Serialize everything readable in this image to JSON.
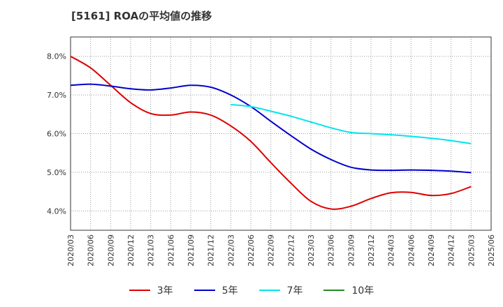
{
  "chart_data": {
    "type": "line",
    "title": "[5161]  ROAの平均値の推移",
    "xlabel": "",
    "ylabel": "",
    "ylim": [
      3.5,
      8.5
    ],
    "yticks": [
      {
        "v": 4.0,
        "label": "4.0%"
      },
      {
        "v": 5.0,
        "label": "5.0%"
      },
      {
        "v": 6.0,
        "label": "6.0%"
      },
      {
        "v": 7.0,
        "label": "7.0%"
      },
      {
        "v": 8.0,
        "label": "8.0%"
      }
    ],
    "categories": [
      "2020/03",
      "2020/06",
      "2020/09",
      "2020/12",
      "2021/03",
      "2021/06",
      "2021/09",
      "2021/12",
      "2022/03",
      "2022/06",
      "2022/09",
      "2022/12",
      "2023/03",
      "2023/06",
      "2023/09",
      "2023/12",
      "2024/03",
      "2024/06",
      "2024/09",
      "2024/12",
      "2025/03",
      "2025/06"
    ],
    "grid": true,
    "legend_position": "bottom",
    "series": [
      {
        "name": "3年",
        "color": "#dd0000",
        "values": [
          8.0,
          7.7,
          7.25,
          6.8,
          6.52,
          6.48,
          6.56,
          6.48,
          6.2,
          5.8,
          5.25,
          4.72,
          4.25,
          4.05,
          4.12,
          4.32,
          4.47,
          4.48,
          4.4,
          4.45,
          4.63,
          null
        ]
      },
      {
        "name": "5年",
        "color": "#0000cc",
        "values": [
          7.25,
          7.28,
          7.23,
          7.16,
          7.13,
          7.18,
          7.25,
          7.2,
          7.0,
          6.7,
          6.32,
          5.95,
          5.6,
          5.33,
          5.13,
          5.06,
          5.05,
          5.06,
          5.05,
          5.03,
          4.99,
          null
        ]
      },
      {
        "name": "7年",
        "color": "#00e5ee",
        "values": [
          null,
          null,
          null,
          null,
          null,
          null,
          null,
          null,
          6.75,
          6.7,
          6.58,
          6.45,
          6.3,
          6.15,
          6.03,
          6.0,
          5.97,
          5.93,
          5.88,
          5.82,
          5.74,
          null
        ]
      },
      {
        "name": "10年",
        "color": "#228822",
        "values": [
          null,
          null,
          null,
          null,
          null,
          null,
          null,
          null,
          null,
          null,
          null,
          null,
          null,
          null,
          null,
          null,
          null,
          null,
          null,
          null,
          null,
          null
        ]
      }
    ]
  }
}
